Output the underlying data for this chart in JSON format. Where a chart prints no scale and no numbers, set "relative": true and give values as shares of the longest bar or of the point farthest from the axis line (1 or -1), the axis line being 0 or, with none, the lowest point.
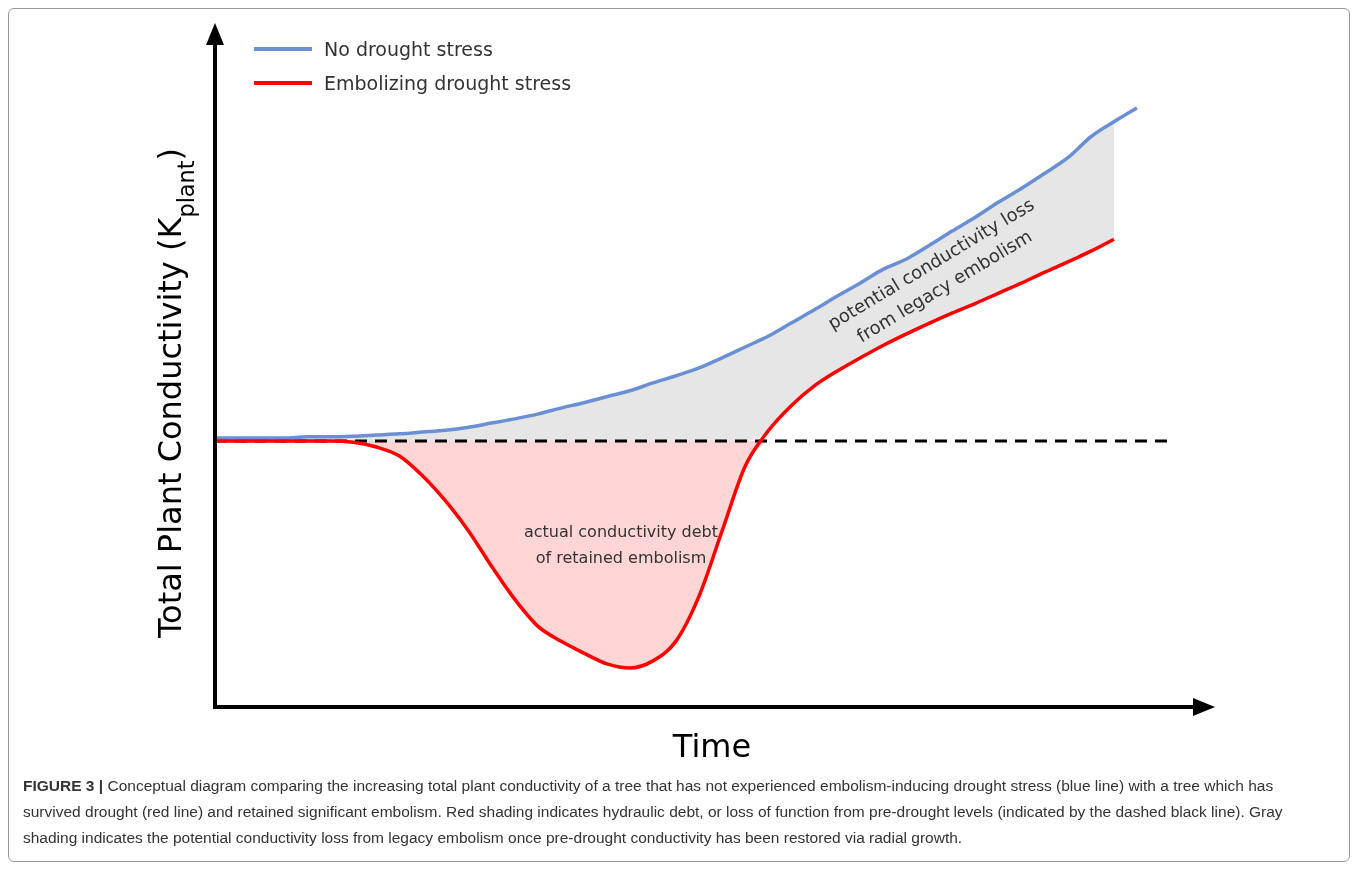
{
  "chart_data": {
    "type": "line",
    "relative": true,
    "xlabel": "Time",
    "ylabel": "Total Plant Conductivity (K$_{plant}$)",
    "legend": "top left",
    "categories": [
      null,
      null,
      null,
      null,
      null,
      null,
      null,
      null,
      null,
      null,
      null,
      null,
      null,
      null,
      null,
      null,
      null,
      null,
      null,
      null,
      null,
      null,
      null,
      null,
      null,
      null,
      null,
      null,
      null,
      null,
      null,
      null,
      null,
      null,
      null,
      null,
      null,
      null,
      null,
      null,
      null
    ],
    "series": [
      {
        "type": "area",
        "color": "#e6e6e6",
        "values": [
          0.449,
          0.449,
          0.449,
          0.449,
          0.451,
          0.451,
          0.452,
          0.454,
          0.456,
          0.459,
          0.462,
          0.467,
          0.474,
          0.481,
          0.489,
          0.499,
          0.508,
          0.518,
          0.528,
          0.541,
          0.553,
          0.566,
          0.583,
          0.601,
          0.619,
          0.641,
          0.663,
          0.686,
          0.708,
          0.731,
          0.748,
          0.771,
          0.795,
          0.818,
          0.843,
          0.866,
          0.891,
          0.917,
          0.952,
          0.977,
          null
        ]
      },
      {
        "type": "area",
        "color": "#ffd5d5",
        "values": [
          null,
          null,
          null,
          null,
          null,
          0.444,
          0.444,
          0.444,
          0.444,
          0.444,
          0.444,
          0.444,
          0.444,
          0.444,
          0.444,
          0.444,
          0.444,
          0.444,
          0.444,
          0.444,
          0.444,
          0.444,
          0.444,
          0.444,
          0.444,
          null,
          null,
          null,
          null,
          null,
          null,
          null,
          null,
          null,
          null,
          null,
          null,
          null,
          null,
          null,
          null
        ]
      },
      {
        "name": "No drought stress",
        "color": "#6a8fd4",
        "values": [
          0.449,
          0.449,
          0.449,
          0.449,
          0.451,
          0.451,
          0.452,
          0.454,
          0.456,
          0.459,
          0.462,
          0.467,
          0.474,
          0.481,
          0.489,
          0.499,
          0.508,
          0.518,
          0.528,
          0.541,
          0.553,
          0.566,
          0.583,
          0.601,
          0.619,
          0.641,
          0.663,
          0.686,
          0.708,
          0.731,
          0.748,
          0.771,
          0.795,
          0.818,
          0.843,
          0.866,
          0.891,
          0.917,
          0.952,
          0.977,
          1
        ]
      },
      {
        "name": "Embolizing drought stress",
        "color": "#ff0000",
        "values": [
          0.444,
          0.444,
          0.444,
          0.444,
          0.444,
          0.444,
          0.442,
          0.434,
          0.419,
          0.386,
          0.344,
          0.294,
          0.235,
          0.18,
          0.135,
          0.11,
          0.09,
          0.072,
          0.065,
          0.077,
          0.11,
          0.185,
          0.294,
          0.402,
          0.461,
          0.503,
          0.536,
          0.561,
          0.583,
          0.604,
          0.623,
          0.641,
          0.658,
          0.674,
          0.691,
          0.708,
          0.726,
          0.743,
          0.761,
          0.781,
          null
        ]
      }
    ],
    "ref_lines": [
      {
        "axis": "y",
        "value": 0.444,
        "color": "#000000",
        "line_style": "dashed"
      }
    ],
    "annotations": [
      "actual conductivity debt\nof retained embolism",
      "potential conductivity loss\nfrom legacy embolism",
      "FIGURE 3 | Conceptual diagram comparing the increasing total plant conductivity of a tree that has not experienced embolism-inducing drought stress (blue line) with a tree which has survived drought (red line) and retained significant embolism. Red shading indicates hydraulic debt, or loss of function from pre-drought levels (indicated by the dashed black line). Gray shading indicates the potential conductivity loss from legacy embolism once pre-drought conductivity has been restored via radial growth."
    ]
  }
}
